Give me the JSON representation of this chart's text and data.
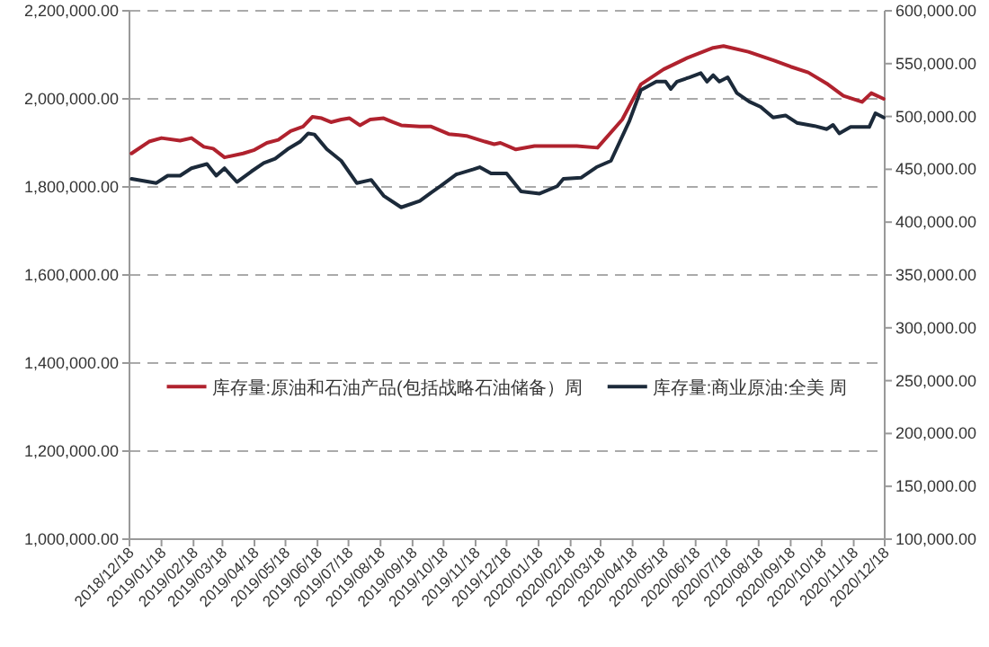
{
  "chart_data": {
    "type": "line",
    "series": [
      {
        "name": "库存量:原油和石油产品(包括战略石油储备）周",
        "color": "#b0222e",
        "x": [
          "2018-12-20",
          "2019-01-06",
          "2019-01-18",
          "2019-02-05",
          "2019-02-16",
          "2019-02-28",
          "2019-03-09",
          "2019-03-20",
          "2019-04-07",
          "2019-04-18",
          "2019-04-30",
          "2019-05-11",
          "2019-05-23",
          "2019-06-04",
          "2019-06-13",
          "2019-06-22",
          "2019-07-01",
          "2019-07-11",
          "2019-07-19",
          "2019-07-29",
          "2019-08-08",
          "2019-08-21",
          "2019-08-30",
          "2019-09-07",
          "2019-09-25",
          "2019-10-06",
          "2019-10-23",
          "2019-11-09",
          "2019-11-27",
          "2019-12-06",
          "2019-12-12",
          "2019-12-27",
          "2020-01-14",
          "2020-02-24",
          "2020-03-15",
          "2020-04-08",
          "2020-04-26",
          "2020-05-18",
          "2020-06-10",
          "2020-07-05",
          "2020-07-15",
          "2020-08-08",
          "2020-09-02",
          "2020-09-18",
          "2020-10-05",
          "2020-10-24",
          "2020-11-08",
          "2020-11-26",
          "2020-12-05",
          "2020-12-17"
        ],
        "values": [
          1876000,
          1903000,
          1911000,
          1905000,
          1911000,
          1891000,
          1887000,
          1867000,
          1876000,
          1884000,
          1900000,
          1907000,
          1927000,
          1937000,
          1959000,
          1956000,
          1947000,
          1953000,
          1956000,
          1940000,
          1953000,
          1956000,
          1947000,
          1940000,
          1937000,
          1937000,
          1920000,
          1916000,
          1903000,
          1897000,
          1900000,
          1885000,
          1893000,
          1893000,
          1889000,
          1953000,
          2033000,
          2067000,
          2093000,
          2116000,
          2120000,
          2107000,
          2087000,
          2073000,
          2060000,
          2033000,
          2007000,
          1993000,
          2013000,
          2000000
        ]
      },
      {
        "name": "库存量:商业原油:全美 周",
        "color": "#1c2a3a",
        "axis": "y2",
        "x": [
          "2018-12-20",
          "2019-01-13",
          "2019-01-24",
          "2019-02-05",
          "2019-02-16",
          "2019-03-03",
          "2019-03-12",
          "2019-03-20",
          "2019-04-01",
          "2019-04-15",
          "2019-04-27",
          "2019-05-08",
          "2019-05-20",
          "2019-06-01",
          "2019-06-09",
          "2019-06-15",
          "2019-06-27",
          "2019-07-11",
          "2019-07-26",
          "2019-08-09",
          "2019-08-21",
          "2019-09-07",
          "2019-09-25",
          "2019-10-06",
          "2019-10-15",
          "2019-10-30",
          "2019-11-16",
          "2019-11-22",
          "2019-12-03",
          "2019-12-18",
          "2020-01-01",
          "2020-01-19",
          "2020-02-05",
          "2020-02-11",
          "2020-02-28",
          "2020-03-14",
          "2020-03-28",
          "2020-04-15",
          "2020-04-26",
          "2020-05-11",
          "2020-05-20",
          "2020-05-25",
          "2020-05-31",
          "2020-06-12",
          "2020-06-23",
          "2020-06-29",
          "2020-07-05",
          "2020-07-11",
          "2020-07-19",
          "2020-07-28",
          "2020-08-09",
          "2020-08-20",
          "2020-09-01",
          "2020-09-13",
          "2020-09-24",
          "2020-10-11",
          "2020-10-23",
          "2020-10-29",
          "2020-11-04",
          "2020-11-15",
          "2020-12-03",
          "2020-12-09",
          "2020-12-17"
        ],
        "values": [
          441000,
          437000,
          444000,
          444000,
          451000,
          455000,
          444000,
          451000,
          438000,
          448000,
          456000,
          460000,
          469000,
          476000,
          484000,
          483000,
          469000,
          458000,
          437000,
          440000,
          425000,
          414000,
          420000,
          428000,
          434000,
          445000,
          450000,
          452000,
          446000,
          446000,
          429000,
          427000,
          434000,
          441000,
          442000,
          452000,
          458000,
          496000,
          525000,
          533000,
          533000,
          526000,
          533000,
          537000,
          541000,
          533000,
          539000,
          533000,
          537000,
          522000,
          514000,
          509000,
          499000,
          501000,
          494000,
          491000,
          488000,
          492000,
          484000,
          490000,
          490000,
          503000,
          499000
        ]
      }
    ],
    "xlim": [
      "2018-12-18",
      "2020-12-18"
    ],
    "xticks": [
      {
        "value": "2018-12-18",
        "label": "2018/12/18"
      },
      {
        "value": "2019-01-18",
        "label": "2019/01/18"
      },
      {
        "value": "2019-02-18",
        "label": "2019/02/18"
      },
      {
        "value": "2019-03-18",
        "label": "2019/03/18"
      },
      {
        "value": "2019-04-18",
        "label": "2019/04/18"
      },
      {
        "value": "2019-05-18",
        "label": "2019/05/18"
      },
      {
        "value": "2019-06-18",
        "label": "2019/06/18"
      },
      {
        "value": "2019-07-18",
        "label": "2019/07/18"
      },
      {
        "value": "2019-08-18",
        "label": "2019/08/18"
      },
      {
        "value": "2019-09-18",
        "label": "2019/09/18"
      },
      {
        "value": "2019-10-18",
        "label": "2019/10/18"
      },
      {
        "value": "2019-11-18",
        "label": "2019/11/18"
      },
      {
        "value": "2019-12-18",
        "label": "2019/12/18"
      },
      {
        "value": "2020-01-18",
        "label": "2020/01/18"
      },
      {
        "value": "2020-02-18",
        "label": "2020/02/18"
      },
      {
        "value": "2020-03-18",
        "label": "2020/03/18"
      },
      {
        "value": "2020-04-18",
        "label": "2020/04/18"
      },
      {
        "value": "2020-05-18",
        "label": "2020/05/18"
      },
      {
        "value": "2020-06-18",
        "label": "2020/06/18"
      },
      {
        "value": "2020-07-18",
        "label": "2020/07/18"
      },
      {
        "value": "2020-08-18",
        "label": "2020/08/18"
      },
      {
        "value": "2020-09-18",
        "label": "2020/09/18"
      },
      {
        "value": "2020-10-18",
        "label": "2020/10/18"
      },
      {
        "value": "2020-11-18",
        "label": "2020/11/18"
      },
      {
        "value": "2020-12-18",
        "label": "2020/12/18"
      }
    ],
    "ylim": [
      1000000,
      2200000
    ],
    "yticks": [
      {
        "value": 1000000,
        "label": "1,000,000.00"
      },
      {
        "value": 1200000,
        "label": "1,200,000.00"
      },
      {
        "value": 1400000,
        "label": "1,400,000.00"
      },
      {
        "value": 1600000,
        "label": "1,600,000.00"
      },
      {
        "value": 1800000,
        "label": "1,800,000.00"
      },
      {
        "value": 2000000,
        "label": "2,000,000.00"
      },
      {
        "value": 2200000,
        "label": "2,200,000.00"
      }
    ],
    "y2lim": [
      100000,
      600000
    ],
    "y2ticks": [
      {
        "value": 100000,
        "label": "100,000.00"
      },
      {
        "value": 150000,
        "label": "150,000.00"
      },
      {
        "value": 200000,
        "label": "200,000.00"
      },
      {
        "value": 250000,
        "label": "250,000.00"
      },
      {
        "value": 300000,
        "label": "300,000.00"
      },
      {
        "value": 350000,
        "label": "350,000.00"
      },
      {
        "value": 400000,
        "label": "400,000.00"
      },
      {
        "value": 450000,
        "label": "450,000.00"
      },
      {
        "value": 500000,
        "label": "500,000.00"
      },
      {
        "value": 550000,
        "label": "550,000.00"
      },
      {
        "value": 600000,
        "label": "600,000.00"
      }
    ],
    "grid": "y",
    "legend": "bottom"
  }
}
